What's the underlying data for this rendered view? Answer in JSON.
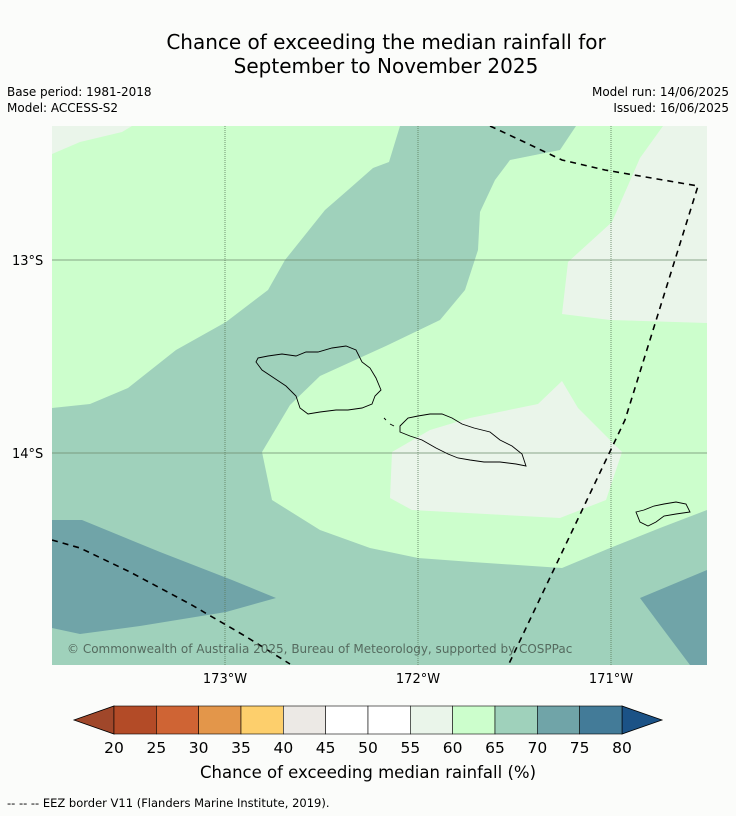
{
  "title": {
    "line1": "Chance of exceeding the median rainfall for",
    "line2": "September to November 2025"
  },
  "meta": {
    "base_period": "Base period: 1981-2018",
    "model": "Model: ACCESS-S2",
    "model_run": "Model run: 14/06/2025",
    "issued": "Issued: 16/06/2025"
  },
  "map": {
    "lat_labels": [
      "13°S",
      "14°S"
    ],
    "lon_labels": [
      "173°W",
      "172°W",
      "171°W"
    ],
    "copyright": "© Commonwealth of Australia 2025, Bureau of Meteorology, supported by COSPPac"
  },
  "colorbar": {
    "ticks": [
      "20",
      "25",
      "30",
      "35",
      "40",
      "45",
      "50",
      "55",
      "60",
      "65",
      "70",
      "75",
      "80"
    ],
    "colors": [
      "#b34b27",
      "#cf6434",
      "#e3964a",
      "#fdcf6c",
      "#ece9e5",
      "#ffffff",
      "#ffffff",
      "#eaf5ea",
      "#ccfecc",
      "#9fd1bb",
      "#70a4a8",
      "#437b98"
    ],
    "low_color": "#a0472a",
    "high_color": "#1b5286",
    "label": "Chance of exceeding median rainfall (%)"
  },
  "footer": {
    "legend": "-- -- -- EEZ border V11 (Flanders Marine Institute, 2019)."
  }
}
